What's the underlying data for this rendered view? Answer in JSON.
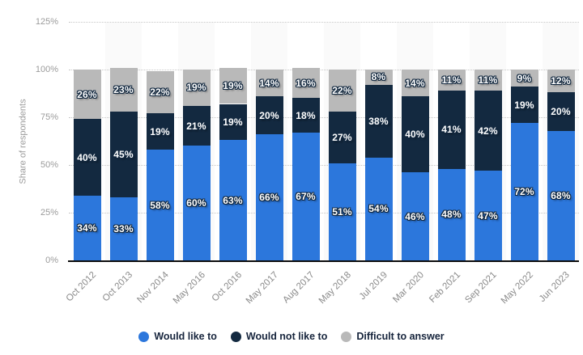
{
  "chart_data": {
    "type": "bar",
    "stacked": true,
    "orientation": "vertical",
    "title": "",
    "xlabel": "",
    "ylabel": "Share of respondents",
    "ylim": [
      0,
      125
    ],
    "yticks": [
      0,
      25,
      50,
      75,
      100,
      125
    ],
    "ytick_suffix": "%",
    "grid": "horizontal-dotted",
    "data_labels": "inside-center, format {value}%",
    "legend_position": "bottom",
    "categories": [
      "Oct 2012",
      "Oct 2013",
      "Nov 2014",
      "May 2016",
      "Oct 2016",
      "May 2017",
      "Aug 2017",
      "May 2018",
      "Jul 2019",
      "Mar 2020",
      "Feb 2021",
      "Sep 2021",
      "May 2022",
      "Jun 2023"
    ],
    "series": [
      {
        "name": "Would like to",
        "color": "#2c77dc",
        "values": [
          34,
          33,
          58,
          60,
          63,
          66,
          67,
          51,
          54,
          46,
          48,
          47,
          72,
          68
        ]
      },
      {
        "name": "Would not like to",
        "color": "#132940",
        "values": [
          40,
          45,
          19,
          21,
          19,
          20,
          18,
          27,
          38,
          40,
          41,
          42,
          19,
          20
        ]
      },
      {
        "name": "Difficult to answer",
        "color": "#b9b9b9",
        "values": [
          26,
          23,
          22,
          19,
          19,
          14,
          16,
          22,
          8,
          14,
          11,
          11,
          9,
          12
        ]
      }
    ]
  },
  "style": {
    "column_band_color": "#fafafa",
    "gridline_color": "#c6c6c6",
    "axis_line_color": "#0d0d0d",
    "tick_label_color": "#9b9b9b",
    "x_label_color": "#8a8a8a",
    "legend_text_color": "#16243c",
    "bar_label_outline_color": "#132940"
  }
}
